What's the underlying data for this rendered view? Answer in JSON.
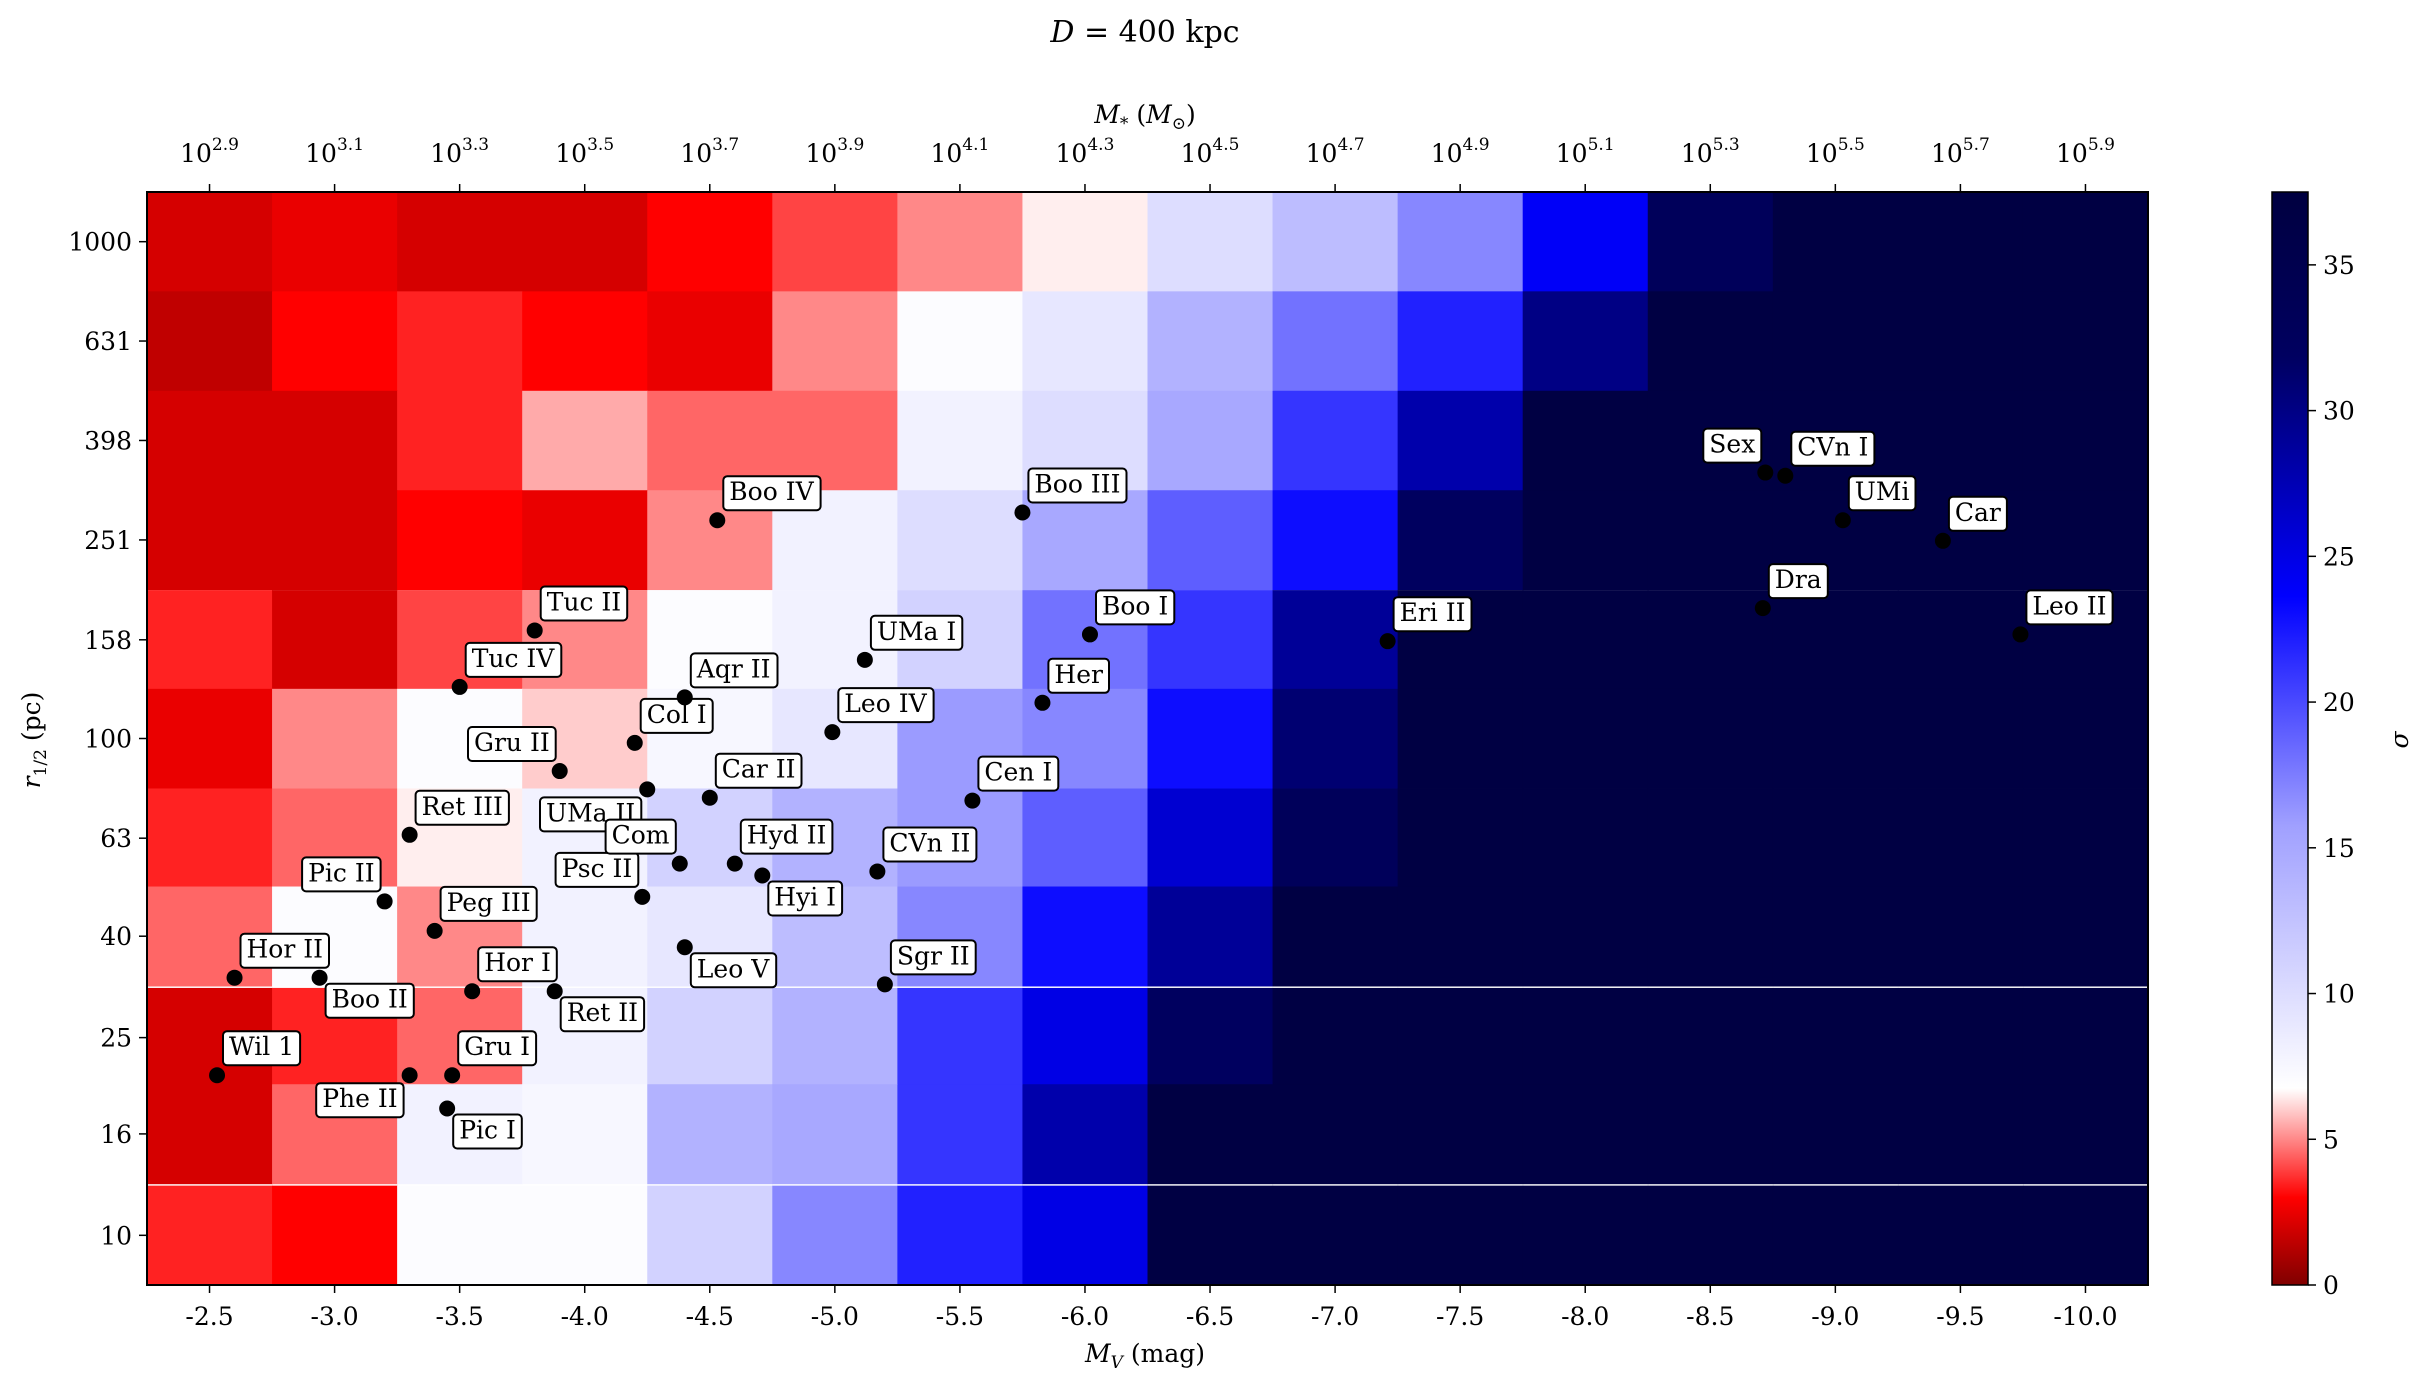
{
  "chart_data": {
    "type": "heatmap",
    "title": "D = 400 kpc",
    "xlabel": "M_V (mag)",
    "ylabel": "r_1/2 (pc)",
    "top_xlabel": "M_* (M_⊙)",
    "colorbar_label": "σ",
    "colorbar_ticks": [
      "0",
      "5",
      "10",
      "15",
      "20",
      "25",
      "30",
      "35"
    ],
    "color_range": [
      0,
      37.5
    ],
    "x_ticks": [
      "-2.5",
      "-3.0",
      "-3.5",
      "-4.0",
      "-4.5",
      "-5.0",
      "-5.5",
      "-6.0",
      "-6.5",
      "-7.0",
      "-7.5",
      "-8.0",
      "-8.5",
      "-9.0",
      "-9.5",
      "-10.0"
    ],
    "x_range": [
      -2.25,
      -10.25
    ],
    "top_ticks": [
      {
        "base": "10",
        "exp": "2.9"
      },
      {
        "base": "10",
        "exp": "3.1"
      },
      {
        "base": "10",
        "exp": "3.3"
      },
      {
        "base": "10",
        "exp": "3.5"
      },
      {
        "base": "10",
        "exp": "3.7"
      },
      {
        "base": "10",
        "exp": "3.9"
      },
      {
        "base": "10",
        "exp": "4.1"
      },
      {
        "base": "10",
        "exp": "4.3"
      },
      {
        "base": "10",
        "exp": "4.5"
      },
      {
        "base": "10",
        "exp": "4.7"
      },
      {
        "base": "10",
        "exp": "4.9"
      },
      {
        "base": "10",
        "exp": "5.1"
      },
      {
        "base": "10",
        "exp": "5.3"
      },
      {
        "base": "10",
        "exp": "5.5"
      },
      {
        "base": "10",
        "exp": "5.7"
      },
      {
        "base": "10",
        "exp": "5.9"
      }
    ],
    "y_ticks": [
      "10",
      "16",
      "25",
      "40",
      "63",
      "100",
      "158",
      "251",
      "398",
      "631",
      "1000"
    ],
    "y_range": [
      0.9,
      3.1
    ],
    "grid": false,
    "columns_mv": [
      -2.5,
      -3.0,
      -3.5,
      -4.0,
      -4.5,
      -5.0,
      -5.5,
      -6.0,
      -6.5,
      -7.0,
      -7.5,
      -8.0,
      -8.5,
      -9.0,
      -9.5,
      -10.0
    ],
    "rows_r_half_pc": [
      1000,
      631,
      398,
      251,
      158,
      100,
      63,
      40,
      25,
      16,
      10
    ],
    "sigma": [
      [
        2,
        2.5,
        2,
        2,
        3,
        4,
        5,
        6.5,
        10,
        13,
        17,
        24,
        33,
        37,
        37,
        37
      ],
      [
        1.5,
        3,
        3.5,
        3,
        2.5,
        5,
        7,
        9,
        14,
        18,
        22,
        30,
        37,
        37,
        37,
        37
      ],
      [
        2,
        2,
        3.5,
        5.5,
        4.5,
        4.5,
        8,
        10,
        15,
        21,
        28,
        37,
        37,
        37,
        37,
        37
      ],
      [
        2,
        2,
        3,
        2.5,
        5,
        8,
        10,
        15,
        19,
        23,
        32,
        37,
        37,
        37,
        37,
        37
      ],
      [
        3.5,
        2,
        4,
        5,
        7,
        8,
        11,
        18,
        21,
        29,
        37,
        37,
        37,
        37,
        37,
        37
      ],
      [
        2.5,
        5,
        7,
        6,
        7.5,
        9,
        16,
        17,
        23,
        31,
        37,
        37,
        37,
        37,
        37,
        37
      ],
      [
        3.5,
        4.5,
        6.5,
        8,
        11,
        14,
        16,
        19,
        26,
        33,
        37,
        37,
        37,
        37,
        37,
        37
      ],
      [
        4.5,
        7,
        5,
        8,
        9,
        13,
        17,
        23,
        29,
        37,
        37,
        37,
        37,
        37,
        37,
        37
      ],
      [
        2,
        3.5,
        4.5,
        8,
        11,
        14,
        21,
        25,
        32,
        37,
        37,
        37,
        37,
        37,
        37,
        37
      ],
      [
        2,
        4.5,
        8,
        7.5,
        14,
        15,
        21,
        28,
        37,
        37,
        37,
        37,
        37,
        37,
        37,
        37
      ],
      [
        3.5,
        3,
        7,
        7,
        11,
        17,
        22,
        25,
        37,
        37,
        37,
        37,
        37,
        37,
        37,
        37
      ]
    ],
    "galaxies": [
      {
        "name": "Wil 1",
        "mv": -2.53,
        "r": 21,
        "side": "right"
      },
      {
        "name": "Hor II",
        "mv": -2.6,
        "r": 33,
        "side": "right"
      },
      {
        "name": "Boo II",
        "mv": -2.94,
        "r": 33,
        "side": "right-below"
      },
      {
        "name": "Pic II",
        "mv": -3.2,
        "r": 47,
        "side": "left"
      },
      {
        "name": "Ret III",
        "mv": -3.3,
        "r": 64,
        "side": "right"
      },
      {
        "name": "Phe II",
        "mv": -3.3,
        "r": 21,
        "side": "left-below"
      },
      {
        "name": "Peg III",
        "mv": -3.4,
        "r": 41,
        "side": "right"
      },
      {
        "name": "Pic I",
        "mv": -3.45,
        "r": 18,
        "side": "right-below"
      },
      {
        "name": "Tuc IV",
        "mv": -3.5,
        "r": 127,
        "side": "right"
      },
      {
        "name": "Gru I",
        "mv": -3.47,
        "r": 21,
        "side": "right"
      },
      {
        "name": "Hor I",
        "mv": -3.55,
        "r": 31,
        "side": "right"
      },
      {
        "name": "Tuc II",
        "mv": -3.8,
        "r": 165,
        "side": "right"
      },
      {
        "name": "Gru II",
        "mv": -3.9,
        "r": 86,
        "side": "left"
      },
      {
        "name": "Ret II",
        "mv": -3.88,
        "r": 31,
        "side": "right-below"
      },
      {
        "name": "Col I",
        "mv": -4.2,
        "r": 98,
        "side": "right"
      },
      {
        "name": "UMa II",
        "mv": -4.25,
        "r": 79,
        "side": "left-below"
      },
      {
        "name": "Psc II",
        "mv": -4.23,
        "r": 48,
        "side": "left"
      },
      {
        "name": "Com",
        "mv": -4.38,
        "r": 56,
        "side": "left"
      },
      {
        "name": "Aqr II",
        "mv": -4.4,
        "r": 121,
        "side": "right"
      },
      {
        "name": "Leo V",
        "mv": -4.4,
        "r": 38,
        "side": "right-below"
      },
      {
        "name": "Car II",
        "mv": -4.5,
        "r": 76,
        "side": "right"
      },
      {
        "name": "Boo IV",
        "mv": -4.53,
        "r": 275,
        "side": "right"
      },
      {
        "name": "Hyd II",
        "mv": -4.6,
        "r": 56,
        "side": "right"
      },
      {
        "name": "Hyi I",
        "mv": -4.71,
        "r": 53,
        "side": "right-below"
      },
      {
        "name": "Leo IV",
        "mv": -4.99,
        "r": 103,
        "side": "right"
      },
      {
        "name": "UMa I",
        "mv": -5.12,
        "r": 144,
        "side": "right"
      },
      {
        "name": "CVn II",
        "mv": -5.17,
        "r": 54,
        "side": "right"
      },
      {
        "name": "Sgr II",
        "mv": -5.2,
        "r": 32,
        "side": "right"
      },
      {
        "name": "Cen I",
        "mv": -5.55,
        "r": 75,
        "side": "right"
      },
      {
        "name": "Boo III",
        "mv": -5.75,
        "r": 285,
        "side": "right"
      },
      {
        "name": "Her",
        "mv": -5.83,
        "r": 118,
        "side": "right"
      },
      {
        "name": "Boo I",
        "mv": -6.02,
        "r": 162,
        "side": "right"
      },
      {
        "name": "Eri II",
        "mv": -7.21,
        "r": 157,
        "side": "right"
      },
      {
        "name": "Dra",
        "mv": -8.71,
        "r": 183,
        "side": "right"
      },
      {
        "name": "Sex",
        "mv": -8.72,
        "r": 343,
        "side": "left"
      },
      {
        "name": "CVn I",
        "mv": -8.8,
        "r": 338,
        "side": "right"
      },
      {
        "name": "UMi",
        "mv": -9.03,
        "r": 275,
        "side": "right"
      },
      {
        "name": "Car",
        "mv": -9.43,
        "r": 250,
        "side": "right"
      },
      {
        "name": "Leo II",
        "mv": -9.74,
        "r": 162,
        "side": "right"
      }
    ]
  }
}
